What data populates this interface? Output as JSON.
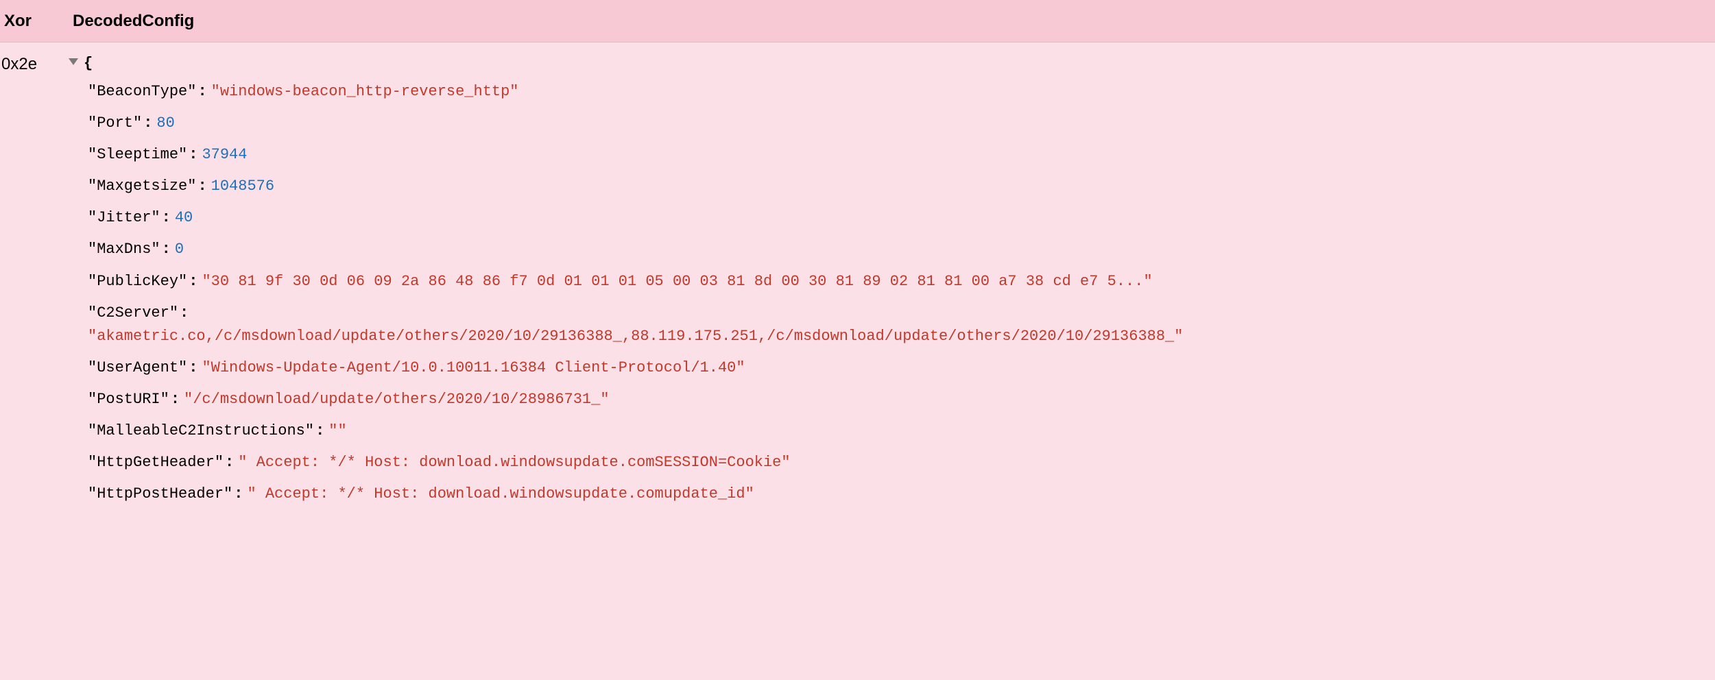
{
  "colors": {
    "background": "#fce0e7",
    "header_background": "#f7c9d4",
    "key_color": "#000000",
    "string_color": "#c1392b",
    "number_color": "#1e6fb8",
    "toggle_color": "#7a7a7a"
  },
  "fonts": {
    "mono": "Menlo, Monaco, Consolas, Courier New, monospace",
    "ui": "-apple-system, Helvetica Neue, Arial, sans-serif",
    "base_size_pt": 16,
    "header_weight": 700
  },
  "columns": {
    "xor": "Xor",
    "decoded": "DecodedConfig"
  },
  "row": {
    "xor_value": "0x2e",
    "open_brace": "{",
    "config_entries": [
      {
        "key": "BeaconType",
        "type": "string",
        "value": "windows-beacon_http-reverse_http"
      },
      {
        "key": "Port",
        "type": "number",
        "value": "80"
      },
      {
        "key": "Sleeptime",
        "type": "number",
        "value": "37944"
      },
      {
        "key": "Maxgetsize",
        "type": "number",
        "value": "1048576"
      },
      {
        "key": "Jitter",
        "type": "number",
        "value": "40"
      },
      {
        "key": "MaxDns",
        "type": "number",
        "value": "0"
      },
      {
        "key": "PublicKey",
        "type": "string",
        "value": "30 81 9f 30 0d 06 09 2a 86 48 86 f7 0d 01 01 01 05 00 03 81 8d 00 30 81 89 02 81 81 00 a7 38 cd e7 5..."
      },
      {
        "key": "C2Server",
        "type": "string_multiline",
        "value": "akametric.co,/c/msdownload/update/others/2020/10/29136388_,88.119.175.251,/c/msdownload/update/others/2020/10/29136388_"
      },
      {
        "key": "UserAgent",
        "type": "string",
        "value": "Windows-Update-Agent/10.0.10011.16384 Client-Protocol/1.40"
      },
      {
        "key": "PostURI",
        "type": "string",
        "value": "/c/msdownload/update/others/2020/10/28986731_"
      },
      {
        "key": "MalleableC2Instructions",
        "type": "string",
        "value": ""
      },
      {
        "key": "HttpGetHeader",
        "type": "string",
        "value": " Accept: */* Host: download.windowsupdate.comSESSION=Cookie"
      },
      {
        "key": "HttpPostHeader",
        "type": "string",
        "value": " Accept: */* Host: download.windowsupdate.comupdate_id"
      }
    ],
    "truncated_entry": {
      "key_prefix_quote": "\"",
      "trailing": "\" : \"\""
    }
  }
}
